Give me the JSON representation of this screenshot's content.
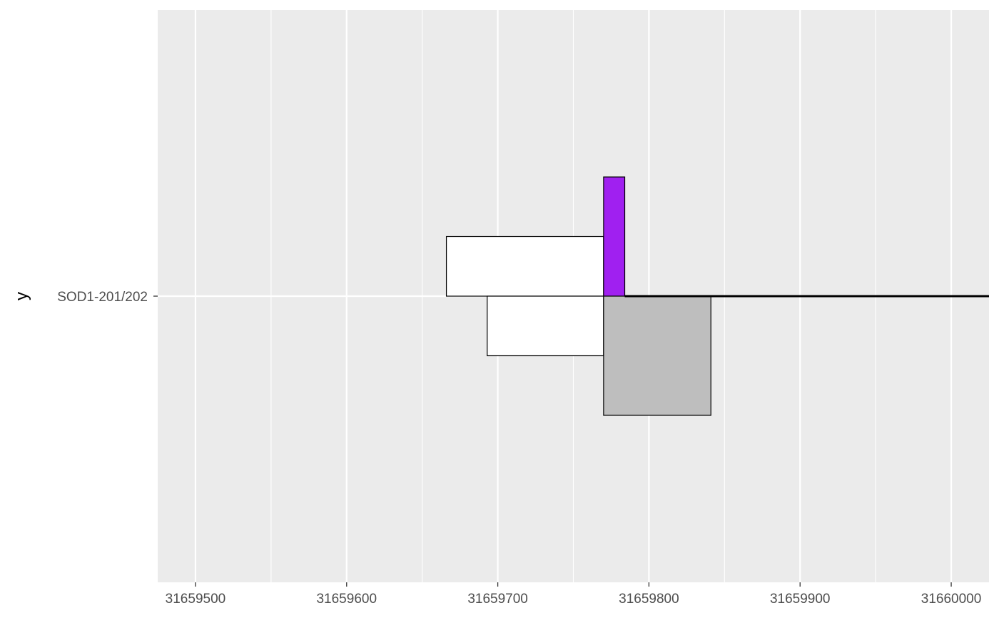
{
  "chart_data": {
    "type": "bar",
    "title": "",
    "xlabel": "",
    "ylabel": "y",
    "xlim": [
      31659475,
      31660025
    ],
    "x_ticks": [
      31659500,
      31659600,
      31659700,
      31659800,
      31659900,
      31660000
    ],
    "x_tick_labels": [
      "31659500",
      "31659600",
      "31659700",
      "31659800",
      "31659900",
      "31660000"
    ],
    "y_categories": [
      "SOD1-201/202"
    ],
    "grid": true,
    "legend": "none",
    "colors": {
      "panel": "#ebebeb",
      "grid": "#ffffff",
      "outline": "#000000",
      "white_box": "#ffffff",
      "purple_box": "#a020f0",
      "grey_box": "#bebebe",
      "line": "#000000"
    },
    "boxes": [
      {
        "name": "box-upper-left",
        "x_start": 31659666,
        "x_end": 31659770,
        "y_low": 0.0,
        "y_high": 0.5,
        "fill": "white_box"
      },
      {
        "name": "box-lower-left",
        "x_start": 31659693,
        "x_end": 31659770,
        "y_low": -0.5,
        "y_high": 0.0,
        "fill": "white_box"
      },
      {
        "name": "box-purple",
        "x_start": 31659770,
        "x_end": 31659784,
        "y_low": 0.0,
        "y_high": 1.0,
        "fill": "purple_box"
      },
      {
        "name": "box-grey",
        "x_start": 31659770,
        "x_end": 31659841,
        "y_low": -1.0,
        "y_high": 0.0,
        "fill": "grey_box"
      }
    ],
    "line": {
      "x_start": 31659784,
      "x_end": 31660025,
      "y": 0.0
    }
  }
}
